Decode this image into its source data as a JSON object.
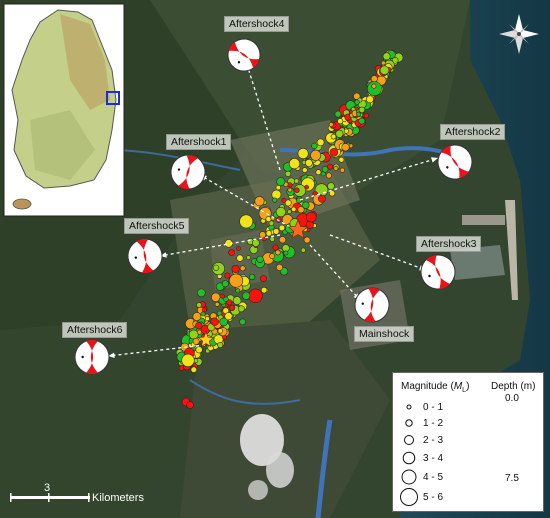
{
  "labels": {
    "aftershock1": "Aftershock1",
    "aftershock2": "Aftershock2",
    "aftershock3": "Aftershock3",
    "aftershock4": "Aftershock4",
    "aftershock5": "Aftershock5",
    "aftershock6": "Aftershock6",
    "mainshock": "Mainshock"
  },
  "legend": {
    "magnitude_title": "Magnitude (",
    "magnitude_unit": "M",
    "magnitude_sub": "L",
    "magnitude_close": ")",
    "depth_title": "Depth (m)",
    "depth_min": "0.0",
    "depth_max": "7.5",
    "magnitude_classes": [
      "0 - 1",
      "1 - 2",
      "2 - 3",
      "3 - 4",
      "4 - 5",
      "5 - 6"
    ]
  },
  "scale": {
    "number": "3",
    "unit": "Kilometers"
  },
  "colors": {
    "shallow": "#1fbf2a",
    "mid": "#f2e21a",
    "deep": "#ff1010",
    "star": "#ffd21a"
  },
  "icons": {
    "north_arrow": "compass-rose-icon",
    "inset": "korea-inset-map-icon"
  }
}
